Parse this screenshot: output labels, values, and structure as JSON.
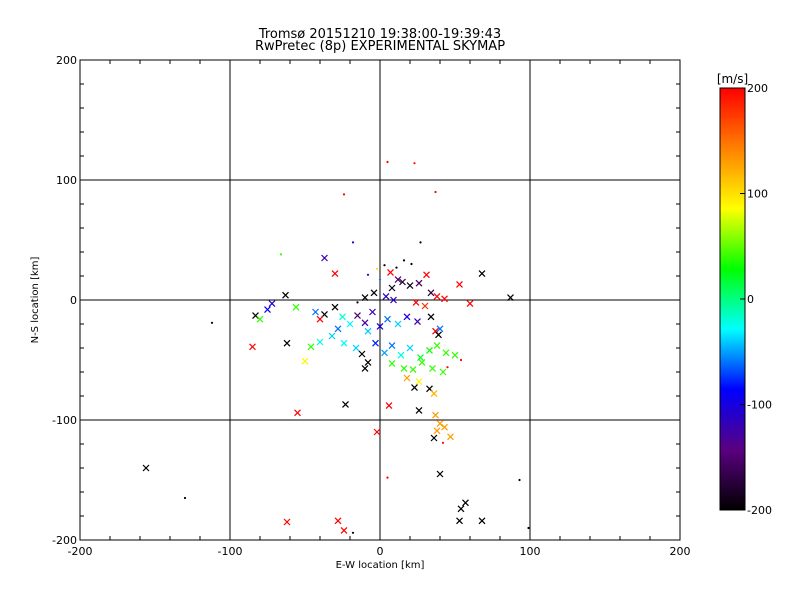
{
  "chart_data": {
    "type": "scatter",
    "title": "Tromsø 20151210 19:38:00-19:39:43",
    "subtitle": "RwPretec (8p) EXPERIMENTAL SKYMAP",
    "xlabel": "E-W location [km]",
    "ylabel": "N-S location [km]",
    "xlim": [
      -200,
      200
    ],
    "ylim": [
      -200,
      200
    ],
    "xticks": [
      -200,
      -100,
      0,
      100,
      200
    ],
    "yticks": [
      -200,
      -100,
      0,
      100,
      200
    ],
    "grid": true,
    "colorbar": {
      "label": "[m/s]",
      "min": -200,
      "max": 200,
      "ticks": [
        200,
        100,
        0,
        -100,
        -200
      ],
      "colormap": [
        "#000000",
        "#5a0080",
        "#0000ff",
        "#00ffff",
        "#00ff00",
        "#ffff00",
        "#ff8000",
        "#ff0000"
      ]
    },
    "points": [
      {
        "x": 5,
        "y": 115,
        "v": 200,
        "m": "dot"
      },
      {
        "x": 23,
        "y": 114,
        "v": 190,
        "m": "dot"
      },
      {
        "x": 37,
        "y": 90,
        "v": 200,
        "m": "dot"
      },
      {
        "x": -24,
        "y": 88,
        "v": 200,
        "m": "dot"
      },
      {
        "x": -66,
        "y": 38,
        "v": 40,
        "m": "dot"
      },
      {
        "x": -18,
        "y": 48,
        "v": -100,
        "m": "dot"
      },
      {
        "x": 27,
        "y": 48,
        "v": -200,
        "m": "dot"
      },
      {
        "x": -37,
        "y": 35,
        "v": -120,
        "m": "x"
      },
      {
        "x": -30,
        "y": 22,
        "v": 200,
        "m": "x"
      },
      {
        "x": 68,
        "y": 22,
        "v": -200,
        "m": "x"
      },
      {
        "x": 53,
        "y": 13,
        "v": 200,
        "m": "x"
      },
      {
        "x": 87,
        "y": 2,
        "v": -200,
        "m": "x"
      },
      {
        "x": 60,
        "y": -3,
        "v": 200,
        "m": "x"
      },
      {
        "x": 31,
        "y": 21,
        "v": 200,
        "m": "x"
      },
      {
        "x": 7,
        "y": 23,
        "v": 200,
        "m": "x"
      },
      {
        "x": 15,
        "y": 15,
        "v": -180,
        "m": "x"
      },
      {
        "x": 20,
        "y": 12,
        "v": -190,
        "m": "x"
      },
      {
        "x": 12,
        "y": 17,
        "v": -150,
        "m": "x"
      },
      {
        "x": 26,
        "y": 14,
        "v": -160,
        "m": "x"
      },
      {
        "x": 8,
        "y": 10,
        "v": -190,
        "m": "x"
      },
      {
        "x": 34,
        "y": 6,
        "v": -170,
        "m": "x"
      },
      {
        "x": 38,
        "y": 3,
        "v": 200,
        "m": "x"
      },
      {
        "x": 43,
        "y": 1,
        "v": 200,
        "m": "x"
      },
      {
        "x": 11,
        "y": 27,
        "v": -200,
        "m": "dot"
      },
      {
        "x": 16,
        "y": 33,
        "v": -200,
        "m": "dot"
      },
      {
        "x": 21,
        "y": 30,
        "v": -200,
        "m": "dot"
      },
      {
        "x": 3,
        "y": 29,
        "v": -200,
        "m": "dot"
      },
      {
        "x": -2,
        "y": 26,
        "v": 100,
        "m": "dot"
      },
      {
        "x": -8,
        "y": 21,
        "v": -100,
        "m": "dot"
      },
      {
        "x": 0,
        "y": 17,
        "v": -60,
        "m": "dot"
      },
      {
        "x": -4,
        "y": 6,
        "v": -200,
        "m": "x"
      },
      {
        "x": -10,
        "y": 2,
        "v": -200,
        "m": "x"
      },
      {
        "x": -15,
        "y": -2,
        "v": -200,
        "m": "dot"
      },
      {
        "x": 4,
        "y": 3,
        "v": -110,
        "m": "x"
      },
      {
        "x": 9,
        "y": 0,
        "v": -110,
        "m": "x"
      },
      {
        "x": 24,
        "y": -2,
        "v": 200,
        "m": "x"
      },
      {
        "x": 30,
        "y": -5,
        "v": 180,
        "m": "x"
      },
      {
        "x": -72,
        "y": -3,
        "v": -100,
        "m": "x"
      },
      {
        "x": -75,
        "y": -8,
        "v": -100,
        "m": "x"
      },
      {
        "x": -63,
        "y": 4,
        "v": -200,
        "m": "x"
      },
      {
        "x": -56,
        "y": -6,
        "v": 40,
        "m": "x"
      },
      {
        "x": -83,
        "y": -13,
        "v": -200,
        "m": "x"
      },
      {
        "x": -80,
        "y": -16,
        "v": 40,
        "m": "x"
      },
      {
        "x": -112,
        "y": -19,
        "v": -200,
        "m": "dot"
      },
      {
        "x": -43,
        "y": -10,
        "v": -60,
        "m": "x"
      },
      {
        "x": -37,
        "y": -12,
        "v": -200,
        "m": "x"
      },
      {
        "x": -40,
        "y": -16,
        "v": 200,
        "m": "x"
      },
      {
        "x": -30,
        "y": -6,
        "v": -200,
        "m": "x"
      },
      {
        "x": -25,
        "y": -14,
        "v": -20,
        "m": "x"
      },
      {
        "x": -20,
        "y": -20,
        "v": -30,
        "m": "x"
      },
      {
        "x": -28,
        "y": -24,
        "v": -60,
        "m": "x"
      },
      {
        "x": -15,
        "y": -13,
        "v": -150,
        "m": "x"
      },
      {
        "x": -10,
        "y": -19,
        "v": -130,
        "m": "x"
      },
      {
        "x": -5,
        "y": -10,
        "v": -120,
        "m": "x"
      },
      {
        "x": -8,
        "y": -26,
        "v": -40,
        "m": "x"
      },
      {
        "x": 0,
        "y": -22,
        "v": -100,
        "m": "x"
      },
      {
        "x": 5,
        "y": -16,
        "v": -60,
        "m": "x"
      },
      {
        "x": 12,
        "y": -20,
        "v": -40,
        "m": "x"
      },
      {
        "x": 18,
        "y": -14,
        "v": -100,
        "m": "x"
      },
      {
        "x": 25,
        "y": -18,
        "v": -120,
        "m": "x"
      },
      {
        "x": 34,
        "y": -14,
        "v": -200,
        "m": "x"
      },
      {
        "x": 40,
        "y": -24,
        "v": -60,
        "m": "x"
      },
      {
        "x": 37,
        "y": -26,
        "v": 200,
        "m": "x"
      },
      {
        "x": 39,
        "y": -29,
        "v": -200,
        "m": "x"
      },
      {
        "x": -40,
        "y": -35,
        "v": -20,
        "m": "x"
      },
      {
        "x": -46,
        "y": -39,
        "v": 40,
        "m": "x"
      },
      {
        "x": -62,
        "y": -36,
        "v": -200,
        "m": "x"
      },
      {
        "x": -85,
        "y": -39,
        "v": 200,
        "m": "x"
      },
      {
        "x": -32,
        "y": -30,
        "v": -40,
        "m": "x"
      },
      {
        "x": -24,
        "y": -36,
        "v": -30,
        "m": "x"
      },
      {
        "x": -16,
        "y": -40,
        "v": -40,
        "m": "x"
      },
      {
        "x": -12,
        "y": -45,
        "v": -200,
        "m": "x"
      },
      {
        "x": -8,
        "y": -52,
        "v": -200,
        "m": "x"
      },
      {
        "x": -10,
        "y": -57,
        "v": -200,
        "m": "x"
      },
      {
        "x": -3,
        "y": -36,
        "v": -80,
        "m": "x"
      },
      {
        "x": 3,
        "y": -44,
        "v": -50,
        "m": "x"
      },
      {
        "x": 8,
        "y": -38,
        "v": -60,
        "m": "x"
      },
      {
        "x": 14,
        "y": -46,
        "v": -20,
        "m": "x"
      },
      {
        "x": 20,
        "y": -40,
        "v": -40,
        "m": "x"
      },
      {
        "x": 27,
        "y": -48,
        "v": 20,
        "m": "x"
      },
      {
        "x": 33,
        "y": -42,
        "v": 30,
        "m": "x"
      },
      {
        "x": 38,
        "y": -38,
        "v": 40,
        "m": "x"
      },
      {
        "x": 44,
        "y": -44,
        "v": 40,
        "m": "x"
      },
      {
        "x": 50,
        "y": -46,
        "v": 40,
        "m": "x"
      },
      {
        "x": 54,
        "y": -50,
        "v": 200,
        "m": "dot"
      },
      {
        "x": -50,
        "y": -51,
        "v": 90,
        "m": "x"
      },
      {
        "x": 8,
        "y": -53,
        "v": 40,
        "m": "x"
      },
      {
        "x": 16,
        "y": -57,
        "v": 40,
        "m": "x"
      },
      {
        "x": 22,
        "y": -58,
        "v": 40,
        "m": "x"
      },
      {
        "x": 28,
        "y": -52,
        "v": 40,
        "m": "x"
      },
      {
        "x": 35,
        "y": -57,
        "v": 40,
        "m": "x"
      },
      {
        "x": 42,
        "y": -60,
        "v": 40,
        "m": "x"
      },
      {
        "x": 45,
        "y": -56,
        "v": 200,
        "m": "dot"
      },
      {
        "x": 18,
        "y": -65,
        "v": 130,
        "m": "x"
      },
      {
        "x": 26,
        "y": -68,
        "v": 90,
        "m": "x"
      },
      {
        "x": 33,
        "y": -74,
        "v": -200,
        "m": "x"
      },
      {
        "x": 36,
        "y": -78,
        "v": 120,
        "m": "x"
      },
      {
        "x": 23,
        "y": -73,
        "v": -200,
        "m": "x"
      },
      {
        "x": -23,
        "y": -87,
        "v": -200,
        "m": "x"
      },
      {
        "x": 6,
        "y": -88,
        "v": 200,
        "m": "x"
      },
      {
        "x": -55,
        "y": -94,
        "v": 200,
        "m": "x"
      },
      {
        "x": 26,
        "y": -92,
        "v": -200,
        "m": "x"
      },
      {
        "x": 37,
        "y": -96,
        "v": 130,
        "m": "x"
      },
      {
        "x": 40,
        "y": -103,
        "v": 130,
        "m": "x"
      },
      {
        "x": 38,
        "y": -109,
        "v": 130,
        "m": "x"
      },
      {
        "x": 43,
        "y": -106,
        "v": 130,
        "m": "x"
      },
      {
        "x": 47,
        "y": -114,
        "v": 130,
        "m": "x"
      },
      {
        "x": 36,
        "y": -115,
        "v": -200,
        "m": "x"
      },
      {
        "x": 42,
        "y": -119,
        "v": 200,
        "m": "dot"
      },
      {
        "x": -2,
        "y": -110,
        "v": 200,
        "m": "x"
      },
      {
        "x": 40,
        "y": -145,
        "v": -200,
        "m": "x"
      },
      {
        "x": 5,
        "y": -148,
        "v": 200,
        "m": "dot"
      },
      {
        "x": 93,
        "y": -150,
        "v": -200,
        "m": "dot"
      },
      {
        "x": -156,
        "y": -140,
        "v": -200,
        "m": "x"
      },
      {
        "x": -130,
        "y": -165,
        "v": -200,
        "m": "dot"
      },
      {
        "x": 57,
        "y": -169,
        "v": -200,
        "m": "x"
      },
      {
        "x": 54,
        "y": -174,
        "v": -200,
        "m": "x"
      },
      {
        "x": 68,
        "y": -184,
        "v": -200,
        "m": "x"
      },
      {
        "x": 53,
        "y": -184,
        "v": -200,
        "m": "x"
      },
      {
        "x": -62,
        "y": -185,
        "v": 200,
        "m": "x"
      },
      {
        "x": -28,
        "y": -184,
        "v": 200,
        "m": "x"
      },
      {
        "x": -24,
        "y": -192,
        "v": 200,
        "m": "x"
      },
      {
        "x": -18,
        "y": -194,
        "v": -200,
        "m": "dot"
      },
      {
        "x": 99,
        "y": -190,
        "v": -200,
        "m": "dot"
      }
    ]
  }
}
